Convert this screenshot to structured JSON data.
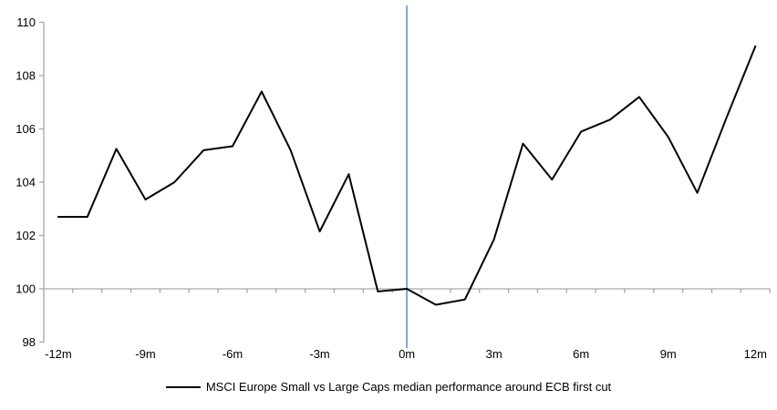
{
  "chart_data": {
    "type": "line",
    "legend": "MSCI Europe Small vs Large Caps median performance around ECB first cut",
    "legend_position": "bottom-center",
    "x_months": [
      -12,
      -11,
      -10,
      -9,
      -8,
      -7,
      -6,
      -5,
      -4,
      -3,
      -2,
      -1,
      0,
      1,
      2,
      3,
      4,
      5,
      6,
      7,
      8,
      9,
      10,
      11,
      12
    ],
    "series": [
      {
        "name": "MSCI Europe Small vs Large Caps median performance around ECB first cut",
        "values": [
          102.7,
          102.7,
          105.25,
          103.35,
          104.0,
          105.2,
          105.35,
          107.4,
          105.2,
          102.15,
          104.3,
          99.9,
          100.0,
          99.4,
          99.6,
          101.85,
          105.45,
          104.1,
          105.9,
          106.35,
          107.2,
          105.7,
          103.6,
          106.4,
          109.1
        ]
      }
    ],
    "ylim": [
      98,
      110
    ],
    "yticks": [
      110,
      108,
      106,
      104,
      102,
      100,
      98
    ],
    "ytick_labels": [
      "110",
      "108",
      "106",
      "104",
      "102",
      "100",
      "98"
    ],
    "xtick_labeled_months": [
      -12,
      -9,
      -6,
      -3,
      0,
      3,
      6,
      9,
      12
    ],
    "xtick_labels": [
      "-12m",
      "-9m",
      "-6m",
      "-3m",
      "0m",
      "3m",
      "6m",
      "9m",
      "12m"
    ],
    "baseline_value": 100,
    "event_line_month": 0,
    "grid": "horizontal baseline at 100 only, month-boundary ticks on baseline",
    "colors": {
      "series": "#000000",
      "event_line": "#7BA7D0",
      "axis": "#A6A6A6",
      "baseline": "#ABABAB",
      "tick": "#A6A6A6",
      "label_text": "#000000"
    }
  }
}
